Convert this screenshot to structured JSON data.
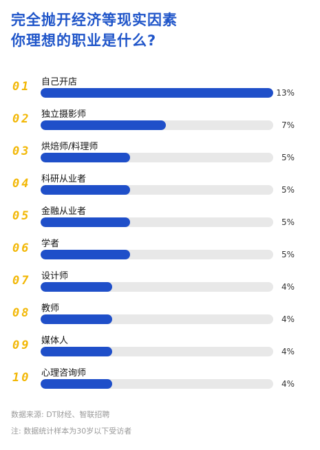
{
  "title_line1": "完全抛开经济等现实因素",
  "title_line2": "你理想的职业是什么?",
  "source": "数据来源: DT财经、智联招聘",
  "note": "注: 数据统计样本为30岁以下受访者",
  "colors": {
    "title": "#1f55c9",
    "bar": "#1f4fc9",
    "track": "#e8e8e8",
    "rank": "#f2b705"
  },
  "chart_data": {
    "type": "bar",
    "orientation": "horizontal",
    "ranks": [
      "01",
      "02",
      "03",
      "04",
      "05",
      "06",
      "07",
      "08",
      "09",
      "10"
    ],
    "categories": [
      "自己开店",
      "独立摄影师",
      "烘焙师/料理师",
      "科研从业者",
      "金融从业者",
      "学者",
      "设计师",
      "教师",
      "媒体人",
      "心理咨询师"
    ],
    "values": [
      13,
      7,
      5,
      5,
      5,
      5,
      4,
      4,
      4,
      4
    ],
    "value_labels": [
      "13%",
      "7%",
      "5%",
      "5%",
      "5%",
      "5%",
      "4%",
      "4%",
      "4%",
      "4%"
    ],
    "xlim": [
      0,
      13
    ]
  }
}
